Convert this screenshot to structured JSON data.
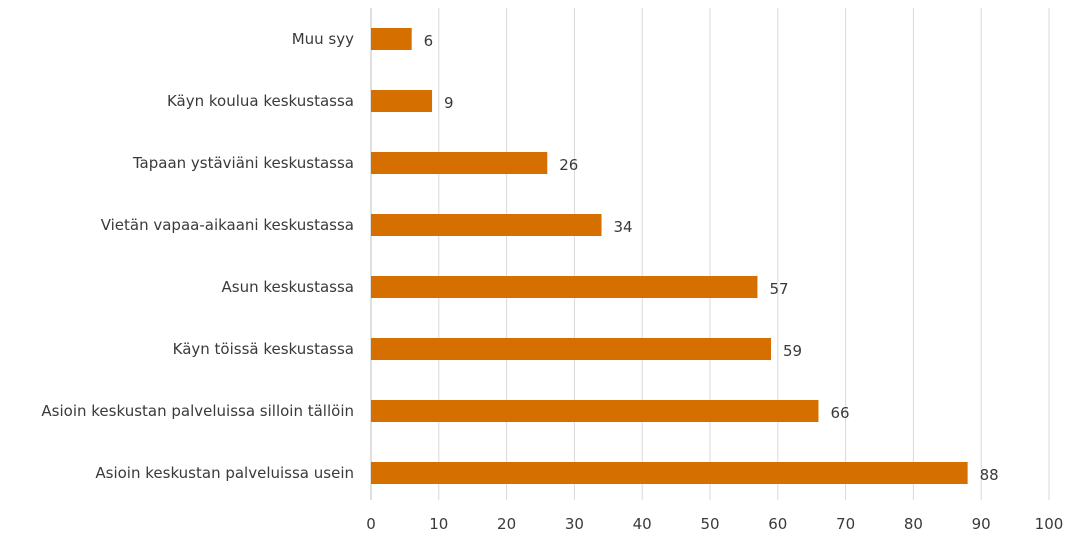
{
  "chart_data": {
    "type": "bar",
    "orientation": "horizontal",
    "title": "",
    "xlabel": "",
    "ylabel": "",
    "categories": [
      "Muu syy",
      "Käyn koulua keskustassa",
      "Tapaan ystäviäni keskustassa",
      "Vietän vapaa-aikaani keskustassa",
      "Asun keskustassa",
      "Käyn töissä keskustassa",
      "Asioin keskustan palveluissa silloin tällöin",
      "Asioin keskustan palveluissa usein"
    ],
    "values": [
      6,
      9,
      26,
      34,
      57,
      59,
      66,
      88
    ],
    "xlim": [
      0,
      100
    ],
    "x_ticks": [
      "0",
      "10",
      "20",
      "30",
      "40",
      "50",
      "60",
      "70",
      "80",
      "90",
      "100"
    ],
    "grid": "vertical",
    "legend": "none",
    "data_labels": true,
    "bar_color": "#D56F00"
  }
}
